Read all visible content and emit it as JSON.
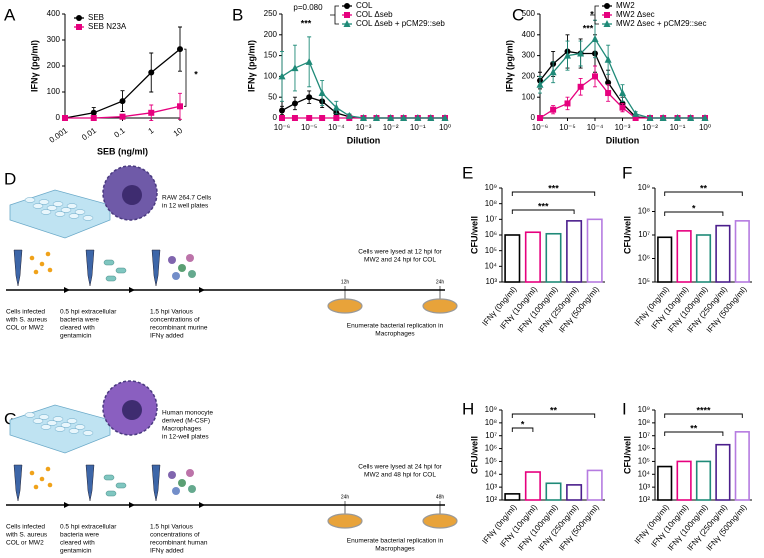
{
  "chart_data": [
    {
      "panel": "A",
      "type": "line",
      "x_label": "SEB (ng/ml)",
      "y_label": "IFNγ (pg/ml)",
      "log_x": true,
      "x": [
        0.001,
        0.01,
        0.1,
        1,
        10
      ],
      "xlim": [
        0.001,
        10
      ],
      "xticks": [
        0.001,
        0.01,
        0.1,
        1,
        10
      ],
      "ylim": [
        0,
        400
      ],
      "yticks": [
        0,
        100,
        200,
        300,
        400
      ],
      "series": [
        {
          "name": "SEB",
          "color": "#000000",
          "marker": "circle",
          "values": [
            0,
            20,
            65,
            175,
            265
          ],
          "errors": [
            5,
            20,
            40,
            75,
            85
          ]
        },
        {
          "name": "SEB N23A",
          "color": "#e6007e",
          "marker": "square",
          "values": [
            0,
            0,
            5,
            20,
            45
          ],
          "errors": [
            0,
            3,
            8,
            30,
            50
          ]
        }
      ],
      "annotations": [
        "*"
      ]
    },
    {
      "panel": "B",
      "type": "line",
      "x_label": "Dilution",
      "y_label": "IFNγ (pg/ml)",
      "log_x": true,
      "x": [
        1e-06,
        3e-06,
        1e-05,
        3e-05,
        0.0001,
        0.0003,
        0.001,
        0.003,
        0.01,
        0.03,
        0.1,
        0.3,
        1
      ],
      "xlim": [
        1e-06,
        1
      ],
      "xticks": [
        {
          "value": 1e-06,
          "label": "10⁻⁶"
        },
        {
          "value": 1e-05,
          "label": "10⁻⁵"
        },
        {
          "value": 0.0001,
          "label": "10⁻⁴"
        },
        {
          "value": 0.001,
          "label": "10⁻³"
        },
        {
          "value": 0.01,
          "label": "10⁻²"
        },
        {
          "value": 0.1,
          "label": "10⁻¹"
        },
        {
          "value": 1,
          "label": "10⁰"
        }
      ],
      "ylim": [
        0,
        250
      ],
      "yticks": [
        0,
        50,
        100,
        150,
        200,
        250
      ],
      "series": [
        {
          "name": "COL",
          "color": "#000000",
          "marker": "circle",
          "values": [
            18,
            35,
            50,
            40,
            12,
            3,
            0,
            0,
            0,
            0,
            0,
            0,
            0
          ],
          "errors": [
            10,
            15,
            15,
            15,
            8,
            2,
            0,
            0,
            0,
            0,
            0,
            0,
            0
          ]
        },
        {
          "name": "COL Δseb",
          "color": "#e6007e",
          "marker": "square",
          "values": [
            0,
            0,
            0,
            0,
            0,
            0,
            0,
            0,
            0,
            0,
            0,
            0,
            0
          ],
          "errors": [
            2,
            2,
            2,
            2,
            2,
            0,
            0,
            0,
            0,
            0,
            0,
            0,
            0
          ]
        },
        {
          "name": "COL Δseb + pCM29::seb",
          "color": "#1f8a78",
          "marker": "triangle",
          "values": [
            100,
            120,
            135,
            60,
            25,
            5,
            0,
            0,
            0,
            0,
            0,
            0,
            0
          ],
          "errors": [
            60,
            55,
            60,
            30,
            15,
            5,
            0,
            0,
            0,
            0,
            0,
            0,
            0
          ]
        }
      ],
      "annotations": [
        "p=0.080",
        "***"
      ]
    },
    {
      "panel": "C",
      "type": "line",
      "x_label": "Dilution",
      "y_label": "IFNγ (pg/ml)",
      "log_x": true,
      "x": [
        1e-06,
        3e-06,
        1e-05,
        3e-05,
        0.0001,
        0.0003,
        0.001,
        0.003,
        0.01,
        0.03,
        0.1,
        0.3,
        1
      ],
      "xlim": [
        1e-06,
        1
      ],
      "xticks": [
        {
          "value": 1e-06,
          "label": "10⁻⁶"
        },
        {
          "value": 1e-05,
          "label": "10⁻⁵"
        },
        {
          "value": 0.0001,
          "label": "10⁻⁴"
        },
        {
          "value": 0.001,
          "label": "10⁻³"
        },
        {
          "value": 0.01,
          "label": "10⁻²"
        },
        {
          "value": 0.1,
          "label": "10⁻¹"
        },
        {
          "value": 1,
          "label": "10⁰"
        }
      ],
      "ylim": [
        0,
        500
      ],
      "yticks": [
        0,
        100,
        200,
        300,
        400,
        500
      ],
      "series": [
        {
          "name": "MW2",
          "color": "#000000",
          "marker": "circle",
          "values": [
            180,
            260,
            320,
            310,
            310,
            170,
            70,
            5,
            0,
            0,
            0,
            0,
            0
          ],
          "errors": [
            40,
            60,
            80,
            70,
            90,
            60,
            30,
            5,
            0,
            0,
            0,
            0,
            0
          ]
        },
        {
          "name": "MW2 Δsec",
          "color": "#e6007e",
          "marker": "square",
          "values": [
            0,
            40,
            70,
            150,
            200,
            120,
            50,
            0,
            0,
            0,
            0,
            0,
            0
          ],
          "errors": [
            0,
            20,
            30,
            40,
            50,
            40,
            20,
            0,
            0,
            0,
            0,
            0,
            0
          ]
        },
        {
          "name": "MW2 Δsec + pCM29::sec",
          "color": "#1f8a78",
          "marker": "triangle",
          "values": [
            160,
            220,
            300,
            310,
            380,
            280,
            120,
            20,
            0,
            0,
            0,
            0,
            0
          ],
          "errors": [
            40,
            50,
            70,
            60,
            90,
            70,
            40,
            10,
            0,
            0,
            0,
            0,
            0
          ]
        }
      ],
      "annotations": [
        "*",
        "***"
      ]
    },
    {
      "panel": "E",
      "type": "bar",
      "y_label": "CFU/well",
      "log_y": true,
      "categories": [
        "IFNγ (0ng/ml)",
        "IFNγ (10ng/ml)",
        "IFNγ (100ng/ml)",
        "IFNγ (250ng/ml)",
        "IFNγ (500ng/ml)"
      ],
      "colors": [
        "#000000",
        "#e6007e",
        "#1f8a78",
        "#4b1e8c",
        "#b57be0"
      ],
      "values": [
        1000000,
        1500000,
        1200000,
        8000000,
        10000000
      ],
      "ylim": [
        1000,
        1000000000
      ],
      "yticks": [
        {
          "value": 1000,
          "label": "10³"
        },
        {
          "value": 10000,
          "label": "10⁴"
        },
        {
          "value": 100000,
          "label": "10⁵"
        },
        {
          "value": 1000000,
          "label": "10⁶"
        },
        {
          "value": 10000000,
          "label": "10⁷"
        },
        {
          "value": 100000000,
          "label": "10⁸"
        },
        {
          "value": 1000000000,
          "label": "10⁹"
        }
      ],
      "annotations": [
        "***",
        "***"
      ]
    },
    {
      "panel": "F",
      "type": "bar",
      "y_label": "CFU/well",
      "log_y": true,
      "categories": [
        "IFNγ (0ng/ml)",
        "IFNγ (10ng/ml)",
        "IFNγ (100ng/ml)",
        "IFNγ (250ng/ml)",
        "IFNγ (500ng/ml)"
      ],
      "colors": [
        "#000000",
        "#e6007e",
        "#1f8a78",
        "#4b1e8c",
        "#b57be0"
      ],
      "values": [
        8000000,
        15000000,
        10000000,
        25000000,
        40000000
      ],
      "ylim": [
        100000,
        1000000000
      ],
      "yticks": [
        {
          "value": 100000,
          "label": "10⁵"
        },
        {
          "value": 1000000,
          "label": "10⁶"
        },
        {
          "value": 10000000,
          "label": "10⁷"
        },
        {
          "value": 100000000,
          "label": "10⁸"
        },
        {
          "value": 1000000000,
          "label": "10⁹"
        }
      ],
      "annotations": [
        "**",
        "*"
      ]
    },
    {
      "panel": "H",
      "type": "bar",
      "y_label": "CFU/well",
      "log_y": true,
      "categories": [
        "IFNγ (0ng/ml)",
        "IFNγ (10ng/ml)",
        "IFNγ (100ng/ml)",
        "IFNγ (250ng/ml)",
        "IFNγ (500ng/ml)"
      ],
      "colors": [
        "#000000",
        "#e6007e",
        "#1f8a78",
        "#4b1e8c",
        "#b57be0"
      ],
      "values": [
        300,
        15000,
        2000,
        1500,
        20000
      ],
      "ylim": [
        100,
        1000000000
      ],
      "yticks": [
        {
          "value": 100,
          "label": "10²"
        },
        {
          "value": 1000,
          "label": "10³"
        },
        {
          "value": 10000,
          "label": "10⁴"
        },
        {
          "value": 100000,
          "label": "10⁵"
        },
        {
          "value": 1000000,
          "label": "10⁶"
        },
        {
          "value": 10000000,
          "label": "10⁷"
        },
        {
          "value": 100000000,
          "label": "10⁸"
        },
        {
          "value": 1000000000,
          "label": "10⁹"
        }
      ],
      "annotations": [
        "*",
        "**"
      ]
    },
    {
      "panel": "I",
      "type": "bar",
      "y_label": "CFU/well",
      "log_y": true,
      "categories": [
        "IFNγ (0ng/ml)",
        "IFNγ (10ng/ml)",
        "IFNγ (100ng/ml)",
        "IFNγ (250ng/ml)",
        "IFNγ (500ng/ml)"
      ],
      "colors": [
        "#000000",
        "#e6007e",
        "#1f8a78",
        "#4b1e8c",
        "#b57be0"
      ],
      "values": [
        40000,
        100000,
        100000,
        2000000,
        20000000
      ],
      "ylim": [
        100,
        1000000000
      ],
      "yticks": [
        {
          "value": 100,
          "label": "10²"
        },
        {
          "value": 1000,
          "label": "10³"
        },
        {
          "value": 10000,
          "label": "10⁴"
        },
        {
          "value": 100000,
          "label": "10⁵"
        },
        {
          "value": 1000000,
          "label": "10⁶"
        },
        {
          "value": 10000000,
          "label": "10⁷"
        },
        {
          "value": 100000000,
          "label": "10⁸"
        },
        {
          "value": 1000000000,
          "label": "10⁹"
        }
      ],
      "annotations": [
        "****",
        "**"
      ]
    }
  ],
  "schematics": [
    {
      "panel": "D",
      "cell_label": [
        "RAW 264.7 Cells",
        "in 12 well plates"
      ],
      "lysis_note": [
        "Cells were lysed at 12 hpi for",
        "MW2 and 24 hpi  for COL"
      ],
      "time_marks": [
        "12h",
        "24h"
      ],
      "steps": [
        [
          "Cells infected",
          "with S. aureus",
          "COL or MW2"
        ],
        [
          "0.5 hpi extracellular",
          "bacteria were",
          "cleared with",
          "gentamicin"
        ],
        [
          "1.5 hpi Various",
          "concentrations of",
          "recombinant murine",
          "IFNγ added"
        ]
      ],
      "outcome": [
        "Enumerate bacterial replication in",
        "Macrophages"
      ]
    },
    {
      "panel": "G",
      "cell_label": [
        "Human monocyte",
        "derived (M-CSF)",
        "Macrophages",
        "in 12-well plates"
      ],
      "lysis_note": [
        "Cells were lysed at 24 hpi for",
        "MW2 and 48 hpi  for COL"
      ],
      "time_marks": [
        "24h",
        "48h"
      ],
      "steps": [
        [
          "Cells infected",
          "with S. aureus",
          "COL or MW2"
        ],
        [
          "0.5 hpi extracellular",
          "bacteria were",
          "cleared with",
          "gentamicin"
        ],
        [
          "1.5 hpi Various",
          "concentrations of",
          "recombinant human",
          "IFNγ added"
        ]
      ],
      "outcome": [
        "Enumerate bacterial replication in",
        "Macrophages"
      ]
    }
  ]
}
